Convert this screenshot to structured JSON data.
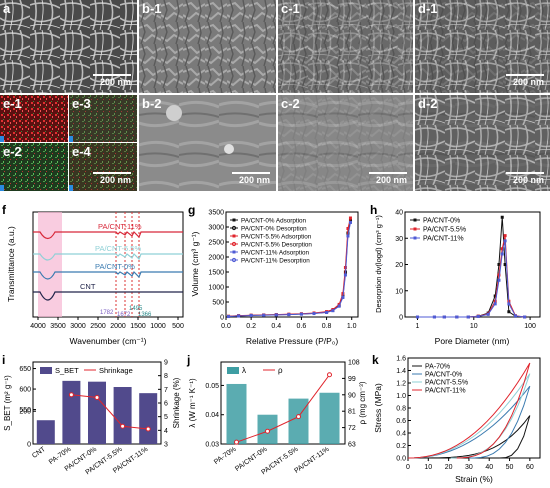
{
  "panels": {
    "a": {
      "label": "a",
      "scale": "200 nm"
    },
    "b1": {
      "label": "b-1"
    },
    "c1": {
      "label": "c-1"
    },
    "d1": {
      "label": "d-1",
      "scale": "200 nm"
    },
    "e1": {
      "label": "e-1"
    },
    "e2": {
      "label": "e-2"
    },
    "e3": {
      "label": "e-3"
    },
    "e4": {
      "label": "e-4"
    },
    "b2": {
      "label": "b-2",
      "scale": "200 nm"
    },
    "c2": {
      "label": "c-2",
      "scale": "200 nm"
    },
    "d2": {
      "label": "d-2",
      "scale": "200 nm"
    },
    "e_scale": "200 nm",
    "f": "f",
    "g": "g",
    "h": "h",
    "i": "i",
    "j": "j",
    "k": "k"
  },
  "chart_data": [
    {
      "id": "f",
      "type": "line",
      "xlabel": "Wavenumber (cm⁻¹)",
      "ylabel": "Transmittance (a.u.)",
      "xticks": [
        "4000",
        "3500",
        "3000",
        "2500",
        "2000",
        "1500",
        "1000",
        "500"
      ],
      "xlim": [
        4000,
        500
      ],
      "series": [
        {
          "name": "PA/CNT-11%",
          "color": "#d8283a"
        },
        {
          "name": "PA/CNT-5.5%",
          "color": "#8fd0d6"
        },
        {
          "name": "PA/CNT-0%",
          "color": "#3b7bb0"
        },
        {
          "name": "CNT",
          "color": "#20244a"
        }
      ],
      "annotations": [
        "1782",
        "1672",
        "1495",
        "1366"
      ]
    },
    {
      "id": "g",
      "type": "line",
      "xlabel": "Relative Pressure (P/P₀)",
      "ylabel": "Volume (cm³ g⁻¹)",
      "xticks": [
        "0.0",
        "0.2",
        "0.4",
        "0.6",
        "0.8",
        "1.0"
      ],
      "yticks": [
        "0",
        "500",
        "1000",
        "1500",
        "2000",
        "2500",
        "3000",
        "3500"
      ],
      "xlim": [
        0,
        1.05
      ],
      "ylim": [
        0,
        3500
      ],
      "legend": [
        "PA/CNT-0% Adsorption",
        "PA/CNT-0% Desorption",
        "PA/CNT-5.5% Adsorption",
        "PA/CNT-5.5% Desorption",
        "PA/CNT-11% Adsorption",
        "PA/CNT-11% Desorption"
      ],
      "series": [
        {
          "name": "PA/CNT-0% Adsorption",
          "color": "#111111",
          "x": [
            0.02,
            0.1,
            0.2,
            0.3,
            0.4,
            0.5,
            0.6,
            0.7,
            0.8,
            0.85,
            0.9,
            0.93,
            0.95,
            0.97,
            0.99
          ],
          "y": [
            20,
            40,
            55,
            65,
            75,
            85,
            100,
            120,
            160,
            220,
            380,
            700,
            1500,
            2800,
            3200
          ]
        },
        {
          "name": "PA/CNT-5.5% Adsorption",
          "color": "#e0242c",
          "x": [
            0.02,
            0.1,
            0.2,
            0.3,
            0.4,
            0.5,
            0.6,
            0.7,
            0.8,
            0.85,
            0.9,
            0.93,
            0.95,
            0.97,
            0.99
          ],
          "y": [
            25,
            45,
            60,
            70,
            80,
            95,
            110,
            135,
            180,
            250,
            420,
            780,
            1650,
            2950,
            3300
          ]
        },
        {
          "name": "PA/CNT-11% Adsorption",
          "color": "#4f5bd5",
          "x": [
            0.02,
            0.1,
            0.2,
            0.3,
            0.4,
            0.5,
            0.6,
            0.7,
            0.8,
            0.85,
            0.9,
            0.93,
            0.95,
            0.97,
            0.99
          ],
          "y": [
            15,
            35,
            50,
            60,
            70,
            80,
            95,
            115,
            150,
            210,
            360,
            650,
            1400,
            2700,
            3150
          ]
        }
      ]
    },
    {
      "id": "h",
      "type": "line",
      "xlabel": "Pore Diameter (nm)",
      "ylabel": "Desorption dv(logd) (cm³ g⁻¹)",
      "xticks": [
        "1",
        "10",
        "100"
      ],
      "yticks": [
        "0",
        "10",
        "20",
        "30",
        "40"
      ],
      "ylim": [
        0,
        40
      ],
      "xscale": "log",
      "series": [
        {
          "name": "PA/CNT-0%",
          "color": "#111111",
          "x": [
            1,
            2,
            3,
            5,
            8,
            12,
            18,
            24,
            28,
            32,
            36,
            42,
            55,
            80
          ],
          "y": [
            0,
            0,
            0,
            0,
            0,
            0.3,
            1.5,
            8,
            20,
            38,
            20,
            2,
            0.3,
            0
          ]
        },
        {
          "name": "PA/CNT-5.5%",
          "color": "#e0242c",
          "x": [
            1,
            2,
            3,
            5,
            8,
            12,
            18,
            24,
            28,
            32,
            36,
            42,
            55,
            80
          ],
          "y": [
            0,
            0,
            0,
            0,
            0,
            0.3,
            1.2,
            6,
            16,
            26,
            31,
            6,
            0.5,
            0
          ]
        },
        {
          "name": "PA/CNT-11%",
          "color": "#4f5bd5",
          "x": [
            1,
            2,
            3,
            5,
            8,
            12,
            18,
            24,
            28,
            32,
            36,
            42,
            55,
            80
          ],
          "y": [
            0,
            0,
            0,
            0,
            0,
            0.2,
            1,
            5,
            14,
            24,
            29,
            5,
            0.4,
            0
          ]
        }
      ]
    },
    {
      "id": "i",
      "type": "bar",
      "categories": [
        "CNT",
        "PA-70%",
        "PA/CNT-0%",
        "PA/CNT-5.5%",
        "PA/CNT-11%"
      ],
      "legend": [
        "S_BET",
        "Shrinkage"
      ],
      "ylabel": "S_BET (m² g⁻¹)",
      "y2label": "Shrinkage (%)",
      "yticks": [
        "0",
        "200",
        "550",
        "600",
        "650"
      ],
      "y2ticks": [
        "3",
        "4",
        "5",
        "6",
        "7",
        "8",
        "9"
      ],
      "y2lim": [
        3,
        9
      ],
      "bar_values": [
        145,
        620,
        618,
        605,
        590
      ],
      "shrinkage": [
        null,
        6.6,
        6.4,
        4.3,
        4.1
      ],
      "colors": {
        "bar": "#514a8c",
        "line": "#e0242c"
      }
    },
    {
      "id": "j",
      "type": "bar",
      "categories": [
        "PA-70%",
        "PA/CNT-0%",
        "PA/CNT-5.5%",
        "PA/CNT-11%"
      ],
      "legend": [
        "λ",
        "ρ"
      ],
      "ylabel": "λ (W m⁻¹ K⁻¹)",
      "y2label": "ρ (mg cm⁻³)",
      "yticks": [
        "0.03",
        "0.04",
        "0.05"
      ],
      "ylim": [
        0.03,
        0.058
      ],
      "y2ticks": [
        "63",
        "72",
        "81",
        "90",
        "99",
        "108"
      ],
      "y2lim": [
        63,
        108
      ],
      "bar_values": [
        0.0505,
        0.04,
        0.0455,
        0.0475
      ],
      "rho": [
        64,
        70,
        78,
        101
      ],
      "colors": {
        "bar": "#3e9ea3",
        "line": "#e0242c"
      }
    },
    {
      "id": "k",
      "type": "line",
      "xlabel": "Strain (%)",
      "ylabel": "Stress (MPa)",
      "xticks": [
        "0",
        "10",
        "20",
        "30",
        "40",
        "50",
        "60"
      ],
      "yticks": [
        "0.0",
        "0.2",
        "0.4",
        "0.6",
        "0.8",
        "1.0",
        "1.2",
        "1.4",
        "1.6"
      ],
      "xlim": [
        0,
        65
      ],
      "ylim": [
        0,
        1.6
      ],
      "series": [
        {
          "name": "PA-70%",
          "color": "#111111"
        },
        {
          "name": "PA/CNT-0%",
          "color": "#3b7bb0"
        },
        {
          "name": "PA/CNT-5.5%",
          "color": "#8fd0d6"
        },
        {
          "name": "PA/CNT-11%",
          "color": "#e0242c"
        }
      ],
      "max_stress": [
        0.68,
        1.15,
        1.35,
        1.52
      ]
    }
  ]
}
